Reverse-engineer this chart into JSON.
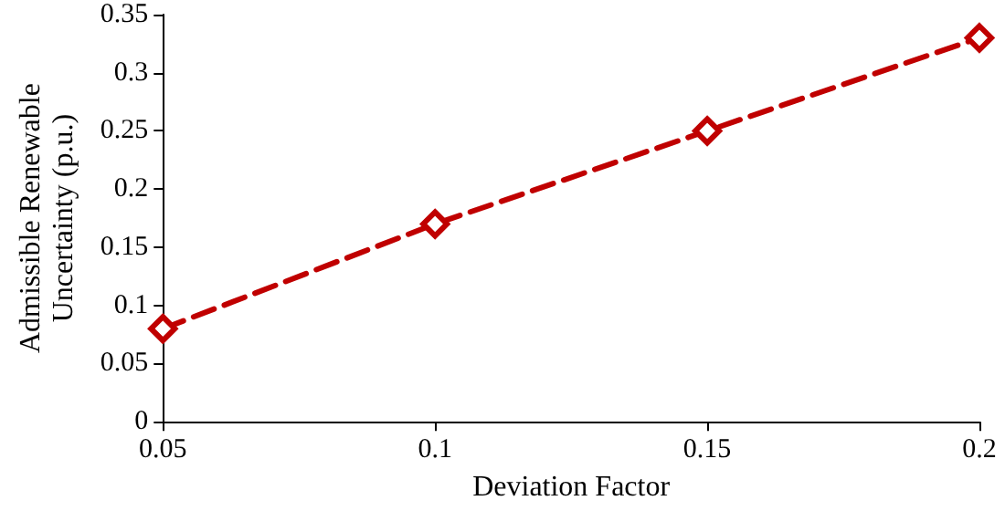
{
  "chart_data": {
    "type": "line",
    "xlabel": "Deviation Factor",
    "ylabel": "Admissible Renewable\nUncertainty (p.u.)",
    "x": [
      0.05,
      0.1,
      0.15,
      0.2
    ],
    "series": [
      {
        "color": "#c00000",
        "values": [
          0.08,
          0.17,
          0.25,
          0.33
        ]
      }
    ],
    "xlim": [
      0.05,
      0.2
    ],
    "xticks": [
      0.05,
      0.1,
      0.15,
      0.2
    ],
    "ylim": [
      0,
      0.35
    ],
    "yticks": [
      0,
      0.05,
      0.1,
      0.15,
      0.2,
      0.25,
      0.3,
      0.35
    ],
    "grid": false,
    "marker": "diamond",
    "line_style": "dashed"
  }
}
